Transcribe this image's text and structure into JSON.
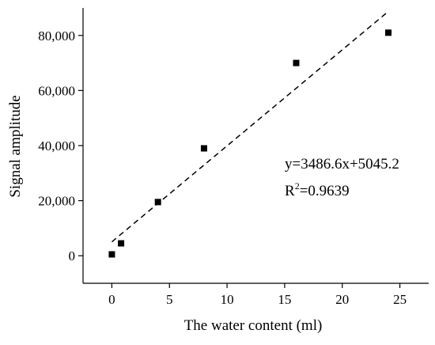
{
  "chart_data": {
    "type": "scatter",
    "xlabel": "The water content (ml)",
    "ylabel": "Signal amplitude",
    "xlim": [
      -2.5,
      27.5
    ],
    "ylim": [
      -10000,
      90000
    ],
    "x_ticks": [
      0,
      5,
      10,
      15,
      20,
      25
    ],
    "x_tick_labels": [
      "0",
      "5",
      "10",
      "15",
      "20",
      "25"
    ],
    "y_ticks": [
      0,
      20000,
      40000,
      60000,
      80000
    ],
    "y_tick_labels": [
      "0",
      "20,000",
      "40,000",
      "60,000",
      "80,000"
    ],
    "grid": false,
    "legend": "none",
    "series": [
      {
        "marker": "square",
        "color": "#000000",
        "points": [
          {
            "x": 0,
            "y": 500
          },
          {
            "x": 0.8,
            "y": 4500
          },
          {
            "x": 4,
            "y": 19500
          },
          {
            "x": 8,
            "y": 39000
          },
          {
            "x": 16,
            "y": 70000
          },
          {
            "x": 24,
            "y": 81000
          }
        ]
      }
    ],
    "fit_line": {
      "style": "dashed",
      "color": "#000000",
      "slope": 3486.6,
      "intercept": 5045.2,
      "x_range": [
        0,
        24
      ]
    },
    "annotations": {
      "equation_main": "y=3486.6x+5045.2",
      "r2_prefix": "R",
      "r2_sup": "2",
      "r2_value": "=0.9639"
    }
  }
}
